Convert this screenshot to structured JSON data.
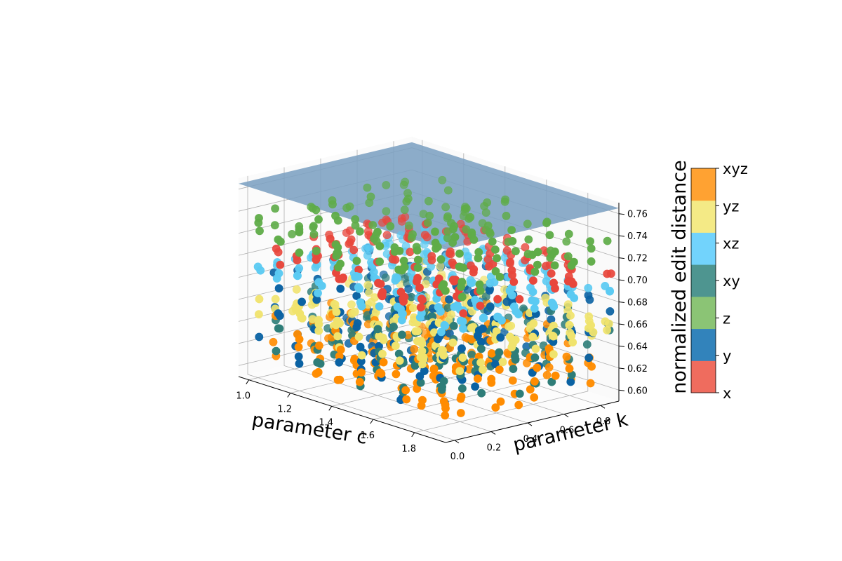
{
  "chart_data": {
    "type": "scatter3d",
    "title": "",
    "xlabel": "parameter c",
    "ylabel": "parameter k",
    "zlabel": "",
    "xlim": [
      0.95,
      1.95
    ],
    "ylim": [
      -0.05,
      0.9
    ],
    "zlim": [
      0.59,
      0.77
    ],
    "x_ticks": [
      "1.0",
      "1.2",
      "1.4",
      "1.6",
      "1.8"
    ],
    "y_ticks": [
      "0.0",
      "0.2",
      "0.4",
      "0.6",
      "0.8"
    ],
    "z_ticks": [
      "0.60",
      "0.62",
      "0.64",
      "0.66",
      "0.68",
      "0.70",
      "0.72",
      "0.74",
      "0.76"
    ],
    "grid": true,
    "reference_plane": {
      "z": 0.765,
      "color": "#7ca1c2"
    },
    "c_values": [
      1.0,
      1.1,
      1.2,
      1.3,
      1.4,
      1.5,
      1.6,
      1.7,
      1.8,
      1.9
    ],
    "k_values": [
      0.0,
      0.1,
      0.2,
      0.3,
      0.4,
      0.5,
      0.6,
      0.7,
      0.8,
      0.9
    ],
    "series": [
      {
        "name": "x",
        "color": "#e8473c",
        "z_range": [
          0.698,
          0.706
        ]
      },
      {
        "name": "y",
        "color": "#0a62a3",
        "z_range": [
          0.611,
          0.688
        ]
      },
      {
        "name": "z",
        "color": "#5fac48",
        "z_range": [
          0.712,
          0.742
        ]
      },
      {
        "name": "xy",
        "color": "#2e7d78",
        "z_range": [
          0.612,
          0.662
        ]
      },
      {
        "name": "xz",
        "color": "#5bcaf2",
        "z_range": [
          0.683,
          0.692
        ]
      },
      {
        "name": "yz",
        "color": "#f0e36d",
        "z_range": [
          0.64,
          0.664
        ]
      },
      {
        "name": "xyz",
        "color": "#ff8c00",
        "z_range": [
          0.602,
          0.642
        ]
      }
    ],
    "colorbar": {
      "title": "normalized edit distance",
      "labels": [
        "x",
        "y",
        "z",
        "xy",
        "xz",
        "yz",
        "xyz"
      ],
      "colors": [
        "#ef6c5e",
        "#3283bb",
        "#8bc475",
        "#4e9590",
        "#72d3fc",
        "#f4ea86",
        "#ffa232"
      ]
    }
  }
}
